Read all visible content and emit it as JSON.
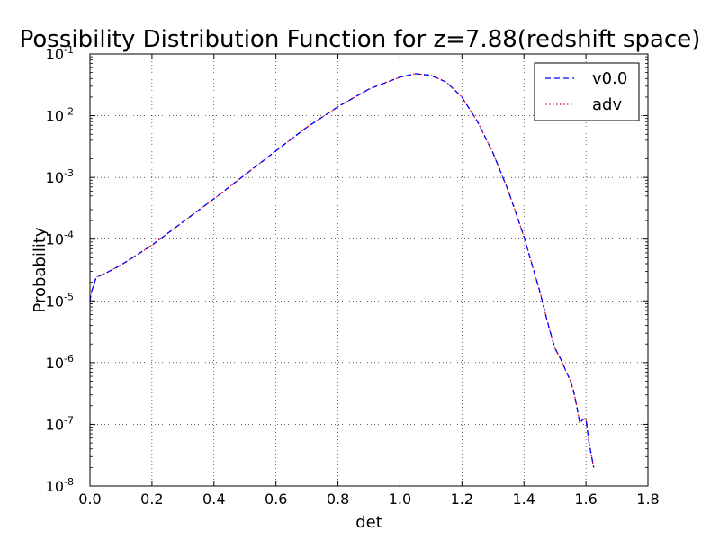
{
  "chart_data": {
    "type": "line",
    "title": "Possibility Distribution Function for z=7.88(redshift space)",
    "xlabel": "det",
    "ylabel": "Probability",
    "xlim": [
      0.0,
      1.8
    ],
    "ylim": [
      1e-08,
      0.1
    ],
    "yscale": "log",
    "grid": true,
    "legend_position": "top-right",
    "x_ticks": [
      "0.0",
      "0.2",
      "0.4",
      "0.6",
      "0.8",
      "1.0",
      "1.2",
      "1.4",
      "1.6",
      "1.8"
    ],
    "y_ticks": [
      {
        "base": "10",
        "exp": "-8"
      },
      {
        "base": "10",
        "exp": "-7"
      },
      {
        "base": "10",
        "exp": "-6"
      },
      {
        "base": "10",
        "exp": "-5"
      },
      {
        "base": "10",
        "exp": "-4"
      },
      {
        "base": "10",
        "exp": "-3"
      },
      {
        "base": "10",
        "exp": "-2"
      },
      {
        "base": "10",
        "exp": "-1"
      }
    ],
    "series": [
      {
        "name": "v0.0",
        "color": "#0000ff",
        "style": "dashed",
        "x": [
          0.0,
          0.005,
          0.02,
          0.05,
          0.1,
          0.15,
          0.2,
          0.3,
          0.4,
          0.5,
          0.6,
          0.7,
          0.8,
          0.9,
          1.0,
          1.05,
          1.1,
          1.15,
          1.2,
          1.25,
          1.3,
          1.35,
          1.4,
          1.45,
          1.48,
          1.5,
          1.52,
          1.55,
          1.56,
          1.57,
          1.58,
          1.59,
          1.6,
          1.61,
          1.625
        ],
        "y": [
          1e-05,
          1.4e-05,
          2.4e-05,
          2.8e-05,
          3.8e-05,
          5.5e-05,
          8e-05,
          0.00019,
          0.00045,
          0.0011,
          0.0027,
          0.0065,
          0.014,
          0.027,
          0.042,
          0.048,
          0.045,
          0.035,
          0.02,
          0.008,
          0.0025,
          0.0006,
          0.00011,
          1.5e-05,
          3.8e-06,
          1.7e-06,
          1.1e-06,
          5e-07,
          3.5e-07,
          2e-07,
          1.05e-07,
          1.2e-07,
          1.25e-07,
          5e-08,
          2e-08
        ]
      },
      {
        "name": "adv",
        "color": "#ff0000",
        "style": "dotted",
        "x": [
          0.0,
          0.005,
          0.02,
          0.05,
          0.1,
          0.15,
          0.2,
          0.3,
          0.4,
          0.5,
          0.6,
          0.7,
          0.8,
          0.9,
          1.0,
          1.05,
          1.1,
          1.15,
          1.2,
          1.25,
          1.3,
          1.35,
          1.4,
          1.45,
          1.48,
          1.5,
          1.52,
          1.55,
          1.56,
          1.57,
          1.58,
          1.59,
          1.6,
          1.61,
          1.625
        ],
        "y": [
          1e-05,
          1.4e-05,
          2.4e-05,
          2.8e-05,
          3.8e-05,
          5.5e-05,
          8e-05,
          0.00019,
          0.00045,
          0.0011,
          0.0027,
          0.0065,
          0.014,
          0.027,
          0.042,
          0.048,
          0.045,
          0.035,
          0.02,
          0.008,
          0.0025,
          0.0006,
          0.00011,
          1.5e-05,
          3.8e-06,
          1.7e-06,
          1.1e-06,
          5e-07,
          3.5e-07,
          2e-07,
          1.05e-07,
          1.2e-07,
          1.25e-07,
          5e-08,
          2e-08
        ]
      }
    ]
  }
}
